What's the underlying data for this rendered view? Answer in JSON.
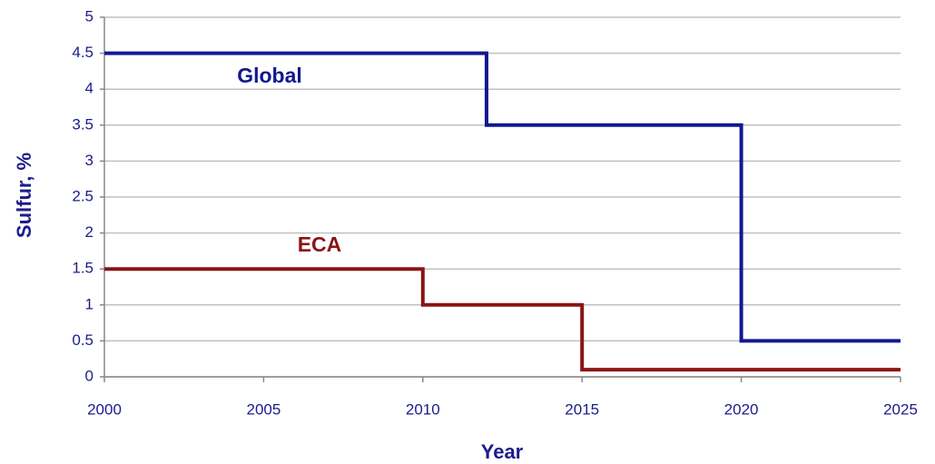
{
  "chart_data": {
    "type": "line",
    "x_label": "Year",
    "y_label": "Sulfur, %",
    "series": [
      {
        "name": "Global",
        "color": "#111890",
        "x": [
          2000,
          2012,
          2012,
          2020,
          2020,
          2025
        ],
        "values": [
          4.5,
          4.5,
          3.5,
          3.5,
          0.5,
          0.5
        ]
      },
      {
        "name": "ECA",
        "color": "#8c1414",
        "x": [
          2000,
          2010,
          2010,
          2015,
          2015,
          2025
        ],
        "values": [
          1.5,
          1.5,
          1.0,
          1.0,
          0.1,
          0.1
        ]
      }
    ],
    "xlim": [
      2000,
      2025
    ],
    "xticks": [
      2000,
      2005,
      2010,
      2015,
      2020,
      2025
    ],
    "ylim": [
      0,
      5
    ],
    "yticks": [
      0,
      0.5,
      1,
      1.5,
      2,
      2.5,
      3,
      3.5,
      4,
      4.5,
      5
    ],
    "grid": true
  }
}
